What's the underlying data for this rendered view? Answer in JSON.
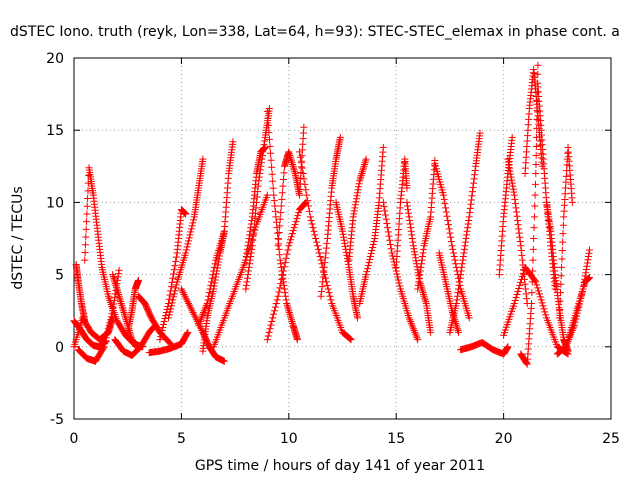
{
  "chart_data": {
    "type": "scatter",
    "title": "dSTEC Iono. truth (reyk, Lon=338, Lat=64, h=93): STEC-STEC_elemax in phase cont. a",
    "xlabel": "GPS time / hours of day 141 of year 2011",
    "ylabel": "dSTEC  / TECUs",
    "xlim": [
      0,
      25
    ],
    "ylim": [
      -5,
      20
    ],
    "xticks": [
      0,
      5,
      10,
      15,
      20,
      25
    ],
    "yticks": [
      -5,
      0,
      5,
      10,
      15,
      20
    ],
    "grid": true,
    "legend": "none",
    "marker": "plus",
    "color": "#ff0000",
    "series": [
      {
        "x": [
          0.0,
          0.3,
          0.6,
          0.9,
          1.2,
          1.5
        ],
        "y": [
          1.8,
          1.2,
          0.5,
          0.1,
          0.0,
          0.4
        ]
      },
      {
        "x": [
          0.1,
          0.2,
          0.35,
          0.5
        ],
        "y": [
          5.7,
          4.5,
          3.0,
          1.8
        ]
      },
      {
        "x": [
          0.5,
          0.7,
          0.9,
          1.1,
          1.3,
          1.6,
          2.0,
          2.4,
          2.8,
          3.2
        ],
        "y": [
          6.0,
          12.4,
          10.5,
          8.0,
          5.5,
          3.5,
          1.8,
          0.8,
          0.2,
          0.0
        ]
      },
      {
        "x": [
          0.2,
          0.6,
          1.0,
          1.4,
          1.8,
          2.1
        ],
        "y": [
          -0.2,
          -0.8,
          -1.0,
          0.0,
          2.5,
          5.3
        ]
      },
      {
        "x": [
          1.8,
          2.1,
          2.4,
          2.7,
          2.9
        ],
        "y": [
          5.0,
          3.5,
          2.0,
          0.5,
          0.0
        ]
      },
      {
        "x": [
          2.5,
          2.7,
          2.85,
          3.0
        ],
        "y": [
          1.0,
          2.5,
          4.0,
          4.6
        ]
      },
      {
        "x": [
          0.0,
          0.4,
          0.8,
          1.2,
          1.6,
          1.8
        ],
        "y": [
          0.0,
          2.0,
          1.0,
          0.5,
          1.0,
          2.0
        ]
      },
      {
        "x": [
          1.9,
          2.3,
          2.7,
          3.1,
          3.5,
          3.8
        ],
        "y": [
          0.5,
          -0.3,
          -0.6,
          0.0,
          1.0,
          1.5
        ]
      },
      {
        "x": [
          3.0,
          3.3,
          3.6,
          4.0,
          4.5
        ],
        "y": [
          3.5,
          3.0,
          2.0,
          1.0,
          0.2
        ]
      },
      {
        "x": [
          3.5,
          4.0,
          4.5,
          5.0,
          5.3
        ],
        "y": [
          -0.4,
          -0.3,
          -0.1,
          0.2,
          1.0
        ]
      },
      {
        "x": [
          4.0,
          4.4,
          4.8,
          5.0,
          5.2
        ],
        "y": [
          0.5,
          3.0,
          6.5,
          9.5,
          9.2
        ]
      },
      {
        "x": [
          4.4,
          4.8,
          5.2,
          5.6,
          5.8,
          6.0
        ],
        "y": [
          2.0,
          4.5,
          6.5,
          9.0,
          11.0,
          13.0
        ]
      },
      {
        "x": [
          5.0,
          5.5,
          6.0,
          6.3,
          6.6,
          7.0
        ],
        "y": [
          4.0,
          2.5,
          1.0,
          0.0,
          -0.7,
          -1.0
        ]
      },
      {
        "x": [
          5.8,
          6.2,
          6.6,
          7.0,
          7.2,
          7.4
        ],
        "y": [
          1.5,
          3.0,
          6.0,
          8.0,
          12.0,
          14.2
        ]
      },
      {
        "x": [
          6.0,
          6.2,
          6.5,
          6.8,
          7.0
        ],
        "y": [
          -0.3,
          2.0,
          4.0,
          6.5,
          8.0
        ]
      },
      {
        "x": [
          6.5,
          7.0,
          7.5,
          8.0,
          8.5,
          9.0
        ],
        "y": [
          0.0,
          2.0,
          4.0,
          6.0,
          8.5,
          10.5
        ]
      },
      {
        "x": [
          8.0,
          8.3,
          8.6,
          8.9,
          9.1
        ],
        "y": [
          4.0,
          7.0,
          11.5,
          14.5,
          16.5
        ]
      },
      {
        "x": [
          8.0,
          8.3,
          8.5,
          8.7,
          8.9
        ],
        "y": [
          6.0,
          9.0,
          12.0,
          13.5,
          13.8
        ]
      },
      {
        "x": [
          9.0,
          9.3,
          9.6,
          9.9,
          10.2,
          10.4
        ],
        "y": [
          16.3,
          10.5,
          6.0,
          3.0,
          1.5,
          0.5
        ]
      },
      {
        "x": [
          9.5,
          9.8,
          10.0,
          10.3,
          10.5,
          10.7
        ],
        "y": [
          7.0,
          12.5,
          13.5,
          12.0,
          10.5,
          15.2
        ]
      },
      {
        "x": [
          9.0,
          9.5,
          10.0,
          10.5,
          10.8
        ],
        "y": [
          0.5,
          3.5,
          7.0,
          9.5,
          10.0
        ]
      },
      {
        "x": [
          10.5,
          11.0,
          11.5,
          12.0,
          12.5,
          12.9
        ],
        "y": [
          13.5,
          9.0,
          6.0,
          3.0,
          1.0,
          0.5
        ]
      },
      {
        "x": [
          11.5,
          11.8,
          12.0,
          12.2,
          12.4
        ],
        "y": [
          3.5,
          7.5,
          11.0,
          13.0,
          14.5
        ]
      },
      {
        "x": [
          12.2,
          12.5,
          12.8,
          13.0,
          13.2
        ],
        "y": [
          10.0,
          8.0,
          5.5,
          3.5,
          2.0
        ]
      },
      {
        "x": [
          12.8,
          13.0,
          13.3,
          13.6
        ],
        "y": [
          6.0,
          9.0,
          11.5,
          13.0
        ]
      },
      {
        "x": [
          13.3,
          13.6,
          14.0,
          14.2,
          14.4
        ],
        "y": [
          3.0,
          5.0,
          7.5,
          10.0,
          13.8
        ]
      },
      {
        "x": [
          14.4,
          14.8,
          15.2,
          15.6,
          16.0
        ],
        "y": [
          10.0,
          6.5,
          4.0,
          2.0,
          0.5
        ]
      },
      {
        "x": [
          15.0,
          15.2,
          15.4,
          15.5
        ],
        "y": [
          5.5,
          10.0,
          13.0,
          11.0
        ]
      },
      {
        "x": [
          15.5,
          15.8,
          16.1,
          16.4,
          16.6
        ],
        "y": [
          10.0,
          7.0,
          4.5,
          3.0,
          1.0
        ]
      },
      {
        "x": [
          16.0,
          16.3,
          16.6,
          16.8
        ],
        "y": [
          4.0,
          7.0,
          9.0,
          12.9
        ]
      },
      {
        "x": [
          16.8,
          17.2,
          17.6,
          18.0,
          18.4
        ],
        "y": [
          12.7,
          10.5,
          7.0,
          4.0,
          2.0
        ]
      },
      {
        "x": [
          17.5,
          17.8,
          18.1,
          18.4,
          18.7,
          18.9
        ],
        "y": [
          1.0,
          3.0,
          6.0,
          9.0,
          12.5,
          14.8
        ]
      },
      {
        "x": [
          17.0,
          17.3,
          17.6,
          17.9
        ],
        "y": [
          6.5,
          4.5,
          2.5,
          1.0
        ]
      },
      {
        "x": [
          18.0,
          18.5,
          19.0,
          19.5,
          20.0,
          20.2
        ],
        "y": [
          -0.2,
          0.0,
          0.3,
          -0.2,
          -0.5,
          0.0
        ]
      },
      {
        "x": [
          19.8,
          20.0,
          20.2,
          20.4
        ],
        "y": [
          5.0,
          9.0,
          12.0,
          14.5
        ]
      },
      {
        "x": [
          20.2,
          20.5,
          20.8,
          21.1
        ],
        "y": [
          13.0,
          10.5,
          7.0,
          3.0
        ]
      },
      {
        "x": [
          20.8,
          21.1,
          21.3,
          21.5,
          21.6
        ],
        "y": [
          -0.5,
          -1.2,
          3.0,
          12.0,
          19.5
        ]
      },
      {
        "x": [
          21.0,
          21.2,
          21.4,
          21.6,
          21.8
        ],
        "y": [
          12.0,
          16.5,
          19.2,
          16.0,
          12.5
        ]
      },
      {
        "x": [
          21.6,
          21.8,
          22.0,
          22.2,
          22.4
        ],
        "y": [
          18.0,
          14.0,
          10.0,
          7.0,
          4.0
        ]
      },
      {
        "x": [
          22.0,
          22.2,
          22.4,
          22.6,
          22.8,
          23.0
        ],
        "y": [
          10.0,
          8.0,
          5.0,
          2.5,
          0.5,
          -0.3
        ]
      },
      {
        "x": [
          22.6,
          22.8,
          23.0,
          23.2
        ],
        "y": [
          2.0,
          9.0,
          13.8,
          10.0
        ]
      },
      {
        "x": [
          22.5,
          22.9,
          23.3,
          23.7,
          24.0
        ],
        "y": [
          -0.5,
          0.0,
          1.5,
          4.0,
          6.7
        ]
      },
      {
        "x": [
          23.0,
          23.4,
          23.8,
          24.0
        ],
        "y": [
          0.5,
          2.5,
          4.5,
          4.8
        ]
      },
      {
        "x": [
          20.0,
          20.5,
          21.0,
          21.5,
          22.0,
          22.5,
          23.0
        ],
        "y": [
          0.8,
          3.0,
          5.5,
          4.5,
          2.0,
          0.0,
          -0.5
        ]
      }
    ]
  }
}
